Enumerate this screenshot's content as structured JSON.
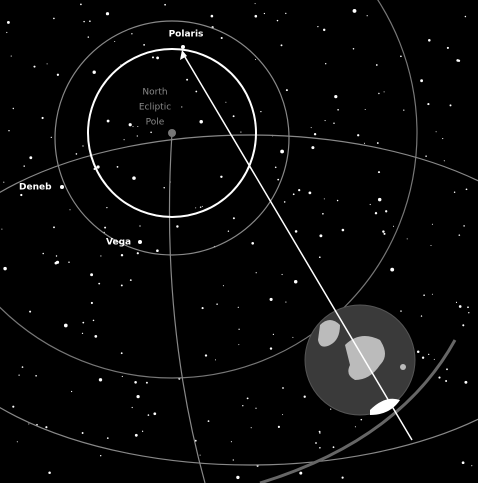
{
  "stars": [
    {
      "label": "Polaris"
    },
    {
      "label": "Deneb"
    },
    {
      "label": "Vega"
    }
  ],
  "pole": {
    "lines": [
      "North",
      "Ecliptic",
      "Pole"
    ]
  }
}
